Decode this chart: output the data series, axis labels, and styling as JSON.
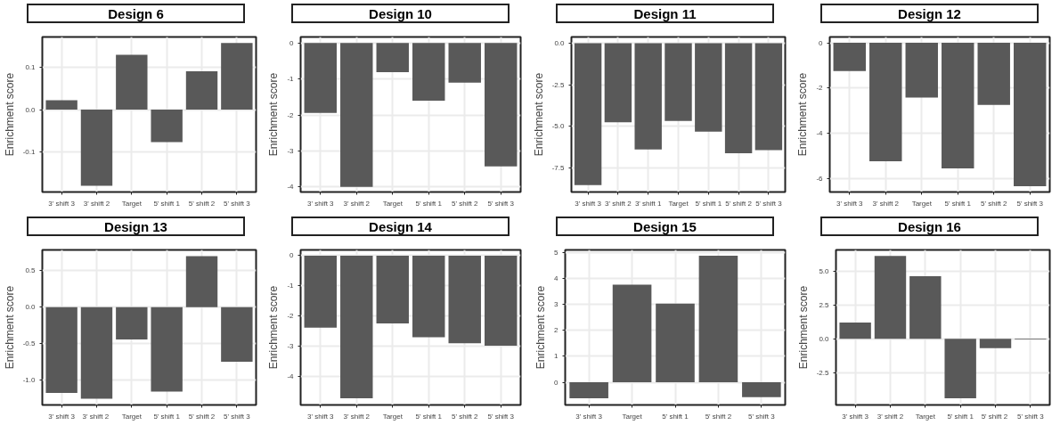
{
  "chart_data": [
    {
      "type": "bar",
      "title": "Design 6",
      "ylabel": "Enrichment score",
      "categories": [
        "3' shift 3",
        "3' shift 2",
        "Target",
        "5' shift 1",
        "5' shift 2",
        "5' shift 3"
      ],
      "values": [
        0.022,
        -0.18,
        0.13,
        -0.077,
        0.091,
        0.158
      ],
      "color": "#595959",
      "ylim": [
        -0.195,
        0.172
      ],
      "yticks": [
        -0.1,
        {
          "value": 0,
          "label": "0.0"
        },
        0.1
      ],
      "grid": true
    },
    {
      "type": "bar",
      "title": "Design 10",
      "ylabel": "Enrichment score",
      "categories": [
        "3' shift 3",
        "3' shift 2",
        "Target",
        "5' shift 1",
        "5' shift 2",
        "5' shift 3"
      ],
      "values": [
        -1.94,
        -4.0,
        -0.81,
        -1.6,
        -1.1,
        -3.43
      ],
      "color": "#595959",
      "ylim": [
        -4.14,
        0.17
      ],
      "yticks": [
        -4,
        -3,
        -2,
        -1,
        0
      ],
      "grid": true
    },
    {
      "type": "bar",
      "title": "Design 11",
      "ylabel": "Enrichment score",
      "categories": [
        "3' shift 3",
        "3' shift 2",
        "3' shift 1",
        "Target",
        "5' shift 1",
        "5' shift 2",
        "5' shift 3"
      ],
      "values": [
        -8.52,
        -4.75,
        -6.38,
        -4.67,
        -5.31,
        -6.6,
        -6.42
      ],
      "color": "#595959",
      "ylim": [
        -8.93,
        0.37
      ],
      "yticks": [
        -7.5,
        {
          "value": -5,
          "label": "-5.0"
        },
        -2.5,
        {
          "value": 0,
          "label": "0.0"
        }
      ],
      "grid": true
    },
    {
      "type": "bar",
      "title": "Design 12",
      "ylabel": "Enrichment score",
      "categories": [
        "3' shift 3",
        "3' shift 2",
        "Target",
        "5' shift 1",
        "5' shift 2",
        "5' shift 3"
      ],
      "values": [
        -1.24,
        -5.22,
        -2.41,
        -5.54,
        -2.74,
        -6.32
      ],
      "color": "#595959",
      "ylim": [
        -6.58,
        0.26
      ],
      "yticks": [
        -6,
        -4,
        -2,
        0
      ],
      "grid": true
    },
    {
      "type": "bar",
      "title": "Design 13",
      "ylabel": "Enrichment score",
      "categories": [
        "3' shift 3",
        "3'  shift 2",
        "Target",
        "5' shift 1",
        "5' shift 2",
        "5' shift 3"
      ],
      "values": [
        -1.18,
        -1.26,
        -0.445,
        -1.16,
        0.7,
        -0.75
      ],
      "color": "#595959",
      "ylim": [
        -1.345,
        0.785
      ],
      "yticks": [
        {
          "value": -1,
          "label": "-1.0"
        },
        -0.5,
        {
          "value": 0,
          "label": "0.0"
        },
        0.5
      ],
      "grid": true
    },
    {
      "type": "bar",
      "title": "Design 14",
      "ylabel": "Enrichment score",
      "categories": [
        "3' shift 3",
        "3' shift 2",
        "Target",
        "5' shift 1",
        "5' shift 2",
        "5' shift 3"
      ],
      "values": [
        -2.38,
        -4.71,
        -2.24,
        -2.69,
        -2.89,
        -2.97
      ],
      "color": "#595959",
      "ylim": [
        -4.93,
        0.19
      ],
      "yticks": [
        -4,
        -3,
        -2,
        -1,
        0
      ],
      "grid": true
    },
    {
      "type": "bar",
      "title": "Design 15",
      "ylabel": "Enrichment score",
      "categories": [
        "3' shift 3",
        "Target",
        "5' shift 1",
        "5' shift 2",
        "5' shift 3"
      ],
      "values": [
        -0.61,
        3.75,
        3.03,
        4.87,
        -0.57
      ],
      "color": "#595959",
      "ylim": [
        -0.87,
        5.09
      ],
      "yticks": [
        0,
        1,
        2,
        3,
        4,
        5
      ],
      "grid": true
    },
    {
      "type": "bar",
      "title": "Design 16",
      "ylabel": "Enrichment score",
      "categories": [
        "3' shift 3",
        "3' shift 2",
        "Target",
        "5' shift 1",
        "5'  shift 2",
        "5' shift 3"
      ],
      "values": [
        1.2,
        6.11,
        4.62,
        -4.39,
        -0.7,
        -0.06
      ],
      "color": "#595959",
      "ylim": [
        -4.88,
        6.55
      ],
      "yticks": [
        -2.5,
        {
          "value": 0,
          "label": "0.0"
        },
        2.5,
        {
          "value": 5,
          "label": "5.0"
        }
      ],
      "grid": true
    }
  ]
}
